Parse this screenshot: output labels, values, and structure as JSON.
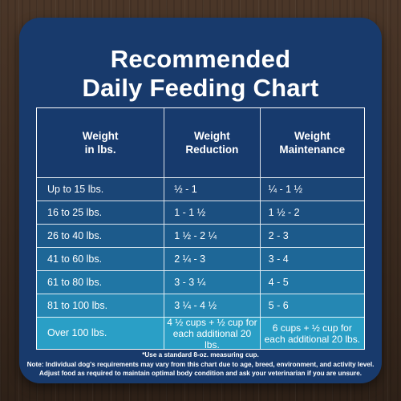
{
  "title": {
    "line1": "Recommended",
    "line2": "Daily Feeding Chart"
  },
  "table": {
    "headers": [
      [
        "Weight",
        "in lbs."
      ],
      [
        "Weight",
        "Reduction"
      ],
      [
        "Weight",
        "Maintenance"
      ]
    ],
    "rows": [
      {
        "weight": "Up to 15 lbs.",
        "reduction": "½ - 1",
        "maintenance": "¼ - 1 ½",
        "bg": "#1a4576"
      },
      {
        "weight": "16 to 25 lbs.",
        "reduction": "1 - 1 ½",
        "maintenance": "1 ½ - 2",
        "bg": "#1b4f80"
      },
      {
        "weight": "26 to 40 lbs.",
        "reduction": "1 ½ - 2 ¼",
        "maintenance": "2 - 3",
        "bg": "#1c5a8b"
      },
      {
        "weight": "41 to 60 lbs.",
        "reduction": "2 ¼ - 3",
        "maintenance": "3 - 4",
        "bg": "#1e6797"
      },
      {
        "weight": "61 to 80 lbs.",
        "reduction": "3 - 3 ¼",
        "maintenance": "4 - 5",
        "bg": "#2076a5"
      },
      {
        "weight": "81 to 100 lbs.",
        "reduction": "3 ¼ - 4 ½",
        "maintenance": "5 - 6",
        "bg": "#2587b3"
      }
    ],
    "last_row": {
      "weight": "Over 100 lbs.",
      "reduction": [
        "4 ½ cups + ½ cup for",
        "each additional 20 lbs."
      ],
      "maintenance": [
        "6 cups + ½ cup for",
        "each additional 20 lbs."
      ],
      "bg": "#2a9fc6"
    }
  },
  "footnote": {
    "star": "*Use a standard 8-oz. measuring cup.",
    "note_line1": "Note: Individual dog's requirements may vary from this chart due to age, breed, environment, and activity level.",
    "note_line2": "Adjust food as required to maintain optimal body condition and ask your veterinarian if you are unsure."
  },
  "colors": {
    "card_bg": "#183a6c",
    "text": "#ffffff"
  }
}
